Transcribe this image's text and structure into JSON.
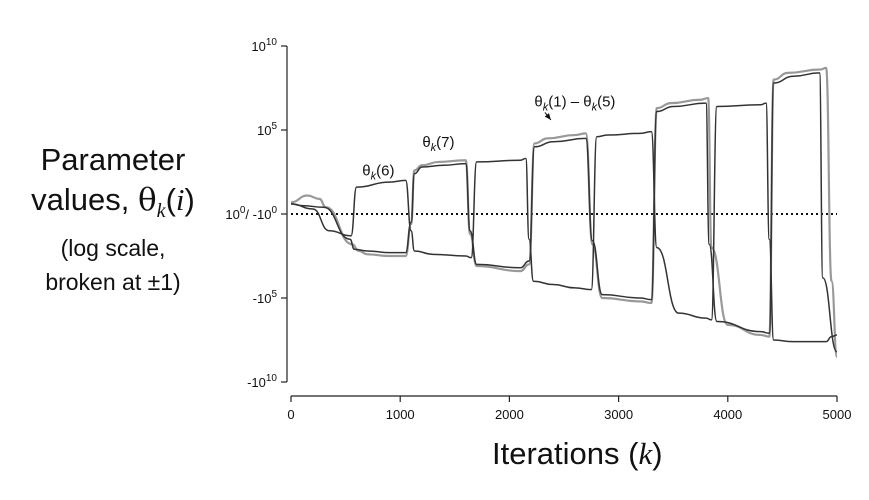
{
  "chart_data": {
    "type": "line",
    "title": "",
    "xlabel_text": "Iterations",
    "xlabel_symbol": "k",
    "ylabel": {
      "line1": "Parameter",
      "line2_text": "values,",
      "line2_theta": "θ",
      "line2_sub": "k",
      "line2_arg": "i",
      "line3": "(log scale,",
      "line4": "broken at ±1)"
    },
    "xlim": [
      0,
      5000
    ],
    "ylim_scaled": [
      -10,
      10
    ],
    "x_ticks": [
      0,
      1000,
      2000,
      3000,
      4000,
      5000
    ],
    "y_ticks": [
      {
        "value": 10,
        "base": "10",
        "exp": "10",
        "prefix": ""
      },
      {
        "value": 5,
        "base": "10",
        "exp": "5",
        "prefix": ""
      },
      {
        "value": 0,
        "base": "10",
        "exp": "0",
        "prefix": "",
        "suffix": "/ -10",
        "suffix_exp": "0"
      },
      {
        "value": -5,
        "base": "10",
        "exp": "5",
        "prefix": "-"
      },
      {
        "value": -10,
        "base": "10",
        "exp": "10",
        "prefix": "-"
      }
    ],
    "zero_line": "dotted",
    "annotations": [
      {
        "theta": "θ",
        "sub": "k",
        "arg": "(6)",
        "x": 800,
        "y": 2.3
      },
      {
        "theta": "θ",
        "sub": "k",
        "arg": "(7)",
        "x": 1350,
        "y": 4.0
      },
      {
        "theta": "θ",
        "sub": "k",
        "arg_pre": "(1) – ",
        "theta2": "θ",
        "sub2": "k",
        "arg": "(5)",
        "x": 2600,
        "y": 6.4,
        "arrow_to": [
          2380,
          5.6
        ]
      }
    ],
    "series": [
      {
        "color": "#999999",
        "x": [
          0,
          150,
          260,
          320,
          560,
          620,
          700,
          900,
          1050,
          1100,
          1130,
          1200,
          1350,
          1600,
          1640,
          1700,
          2100,
          2180,
          2230,
          2350,
          2600,
          2700,
          2760,
          2850,
          3200,
          3300,
          3350,
          3480,
          3750,
          3820,
          3850,
          4000,
          4300,
          4380,
          4420,
          4550,
          4850,
          4900,
          4950,
          5000
        ],
        "y": [
          0.7,
          1.1,
          0.9,
          0.4,
          -1.8,
          -2.2,
          -2.4,
          -2.5,
          -2.5,
          -0.6,
          2.6,
          2.9,
          3.1,
          3.2,
          -1.2,
          -3.1,
          -3.4,
          -3.0,
          4.2,
          4.5,
          4.7,
          4.8,
          -1.8,
          -5.0,
          -5.2,
          -5.3,
          6.3,
          6.6,
          6.8,
          6.9,
          -2.0,
          -6.6,
          -7.2,
          -7.3,
          8.0,
          8.4,
          8.6,
          8.7,
          -4.0,
          -8.5
        ]
      },
      {
        "color": "#333333",
        "x": [
          0,
          100,
          300,
          540,
          580,
          700,
          900,
          1050,
          1100,
          1130,
          1200,
          1400,
          1600,
          1640,
          1700,
          2100,
          2180,
          2230,
          2400,
          2700,
          2760,
          2850,
          3200,
          3300,
          3350,
          3500,
          3800,
          3830,
          3900,
          4300,
          4380,
          4420,
          4600,
          4840,
          4870,
          5000
        ],
        "y": [
          0.6,
          0.5,
          0.4,
          -1.5,
          -2.1,
          -2.2,
          -2.3,
          -2.3,
          -0.5,
          2.4,
          2.8,
          2.9,
          3.0,
          -1.0,
          -3.0,
          -3.2,
          -2.8,
          4.0,
          4.3,
          4.5,
          -1.6,
          -4.8,
          -5.0,
          -5.1,
          6.1,
          6.4,
          6.6,
          -1.8,
          -6.4,
          -7.0,
          -7.1,
          7.8,
          8.2,
          8.4,
          -3.8,
          -8.2
        ]
      },
      {
        "color": "#333333",
        "x": [
          0,
          200,
          350,
          550,
          600,
          900,
          1050,
          1100,
          1130,
          1300,
          1600,
          1650,
          1700,
          2100,
          2150,
          2180,
          2220,
          2400,
          2600,
          2750,
          2800,
          2900,
          3200,
          3300,
          3350,
          3550,
          3800,
          3850,
          3900,
          4300,
          4350,
          4380,
          4420,
          4600,
          4850,
          4900,
          4950,
          5000
        ],
        "y": [
          0.6,
          0.3,
          -1.0,
          -1.3,
          1.6,
          1.9,
          2.0,
          -1.0,
          -2.2,
          -2.4,
          -2.5,
          -2.6,
          3.1,
          3.2,
          3.3,
          -1.5,
          -4.0,
          -4.2,
          -4.4,
          -4.5,
          4.6,
          4.7,
          4.8,
          4.9,
          -2.0,
          -5.9,
          -6.2,
          -6.3,
          6.4,
          6.5,
          6.6,
          -1.5,
          -7.5,
          -7.6,
          -7.6,
          -7.6,
          -7.3,
          -7.2
        ]
      }
    ]
  }
}
